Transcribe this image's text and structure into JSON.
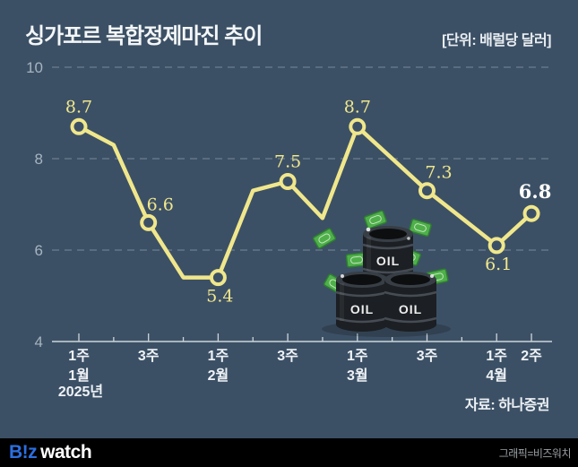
{
  "header": {
    "title": "싱가포르 복합정제마진 추이",
    "unit_label": "[단위: 배럴당 달러]"
  },
  "footer_area": {
    "source": "자료: 하나증권",
    "logo_biz": "B!z",
    "logo_watch": "watch",
    "credit": "그래픽=비즈워치"
  },
  "illustration": {
    "name": "oil-barrels-with-money",
    "barrel_label": "OIL"
  },
  "colors": {
    "background": "#3c5065",
    "line_yellow": "#f0e78c",
    "label_yellow": "#f0e78c",
    "label_white": "#ffffff",
    "grid": "#a7b6c2",
    "axis": "#ccd5db",
    "ytick_text": "#a6b4c0",
    "xtick_text": "#eef2f6",
    "logo_blue": "#2b6fe0",
    "money_green": "#4fb04a",
    "barrel_dark": "#1c1f23"
  },
  "chart_data": {
    "type": "line",
    "title": "싱가포르 복합정제마진 추이",
    "unit": "배럴당 달러",
    "source": "자료: 하나증권",
    "ylim": [
      4,
      10
    ],
    "yticks": [
      10,
      8,
      6,
      4
    ],
    "grid": "dashed-horizontal",
    "x_weeks": [
      "1주",
      "2주",
      "3주",
      "4주",
      "1주",
      "2주",
      "3주",
      "4주",
      "1주",
      "2주",
      "3주",
      "4주",
      "1주",
      "2주"
    ],
    "labeled_tick_indices": [
      0,
      2,
      4,
      6,
      8,
      10,
      12,
      13
    ],
    "months": [
      {
        "index": 0,
        "label": "1월"
      },
      {
        "index": 4,
        "label": "2월"
      },
      {
        "index": 8,
        "label": "3월"
      },
      {
        "index": 12,
        "label": "4월"
      }
    ],
    "year": {
      "index": 0,
      "label": "2025년"
    },
    "values": [
      8.7,
      8.3,
      6.6,
      5.4,
      5.4,
      7.3,
      7.5,
      6.7,
      8.7,
      8.0,
      7.3,
      6.7,
      6.1,
      6.8
    ],
    "points": [
      {
        "index": 0,
        "value": 8.7,
        "label": "8.7",
        "pos": "above",
        "highlight": false
      },
      {
        "index": 2,
        "value": 6.6,
        "label": "6.6",
        "pos": "above-right",
        "highlight": false
      },
      {
        "index": 4,
        "value": 5.4,
        "label": "5.4",
        "pos": "below",
        "highlight": false
      },
      {
        "index": 6,
        "value": 7.5,
        "label": "7.5",
        "pos": "above",
        "highlight": false
      },
      {
        "index": 8,
        "value": 8.7,
        "label": "8.7",
        "pos": "above",
        "highlight": false
      },
      {
        "index": 10,
        "value": 7.3,
        "label": "7.3",
        "pos": "above-right",
        "highlight": false
      },
      {
        "index": 12,
        "value": 6.1,
        "label": "6.1",
        "pos": "below",
        "highlight": false
      },
      {
        "index": 13,
        "value": 6.8,
        "label": "6.8",
        "pos": "above",
        "highlight": true
      }
    ]
  }
}
